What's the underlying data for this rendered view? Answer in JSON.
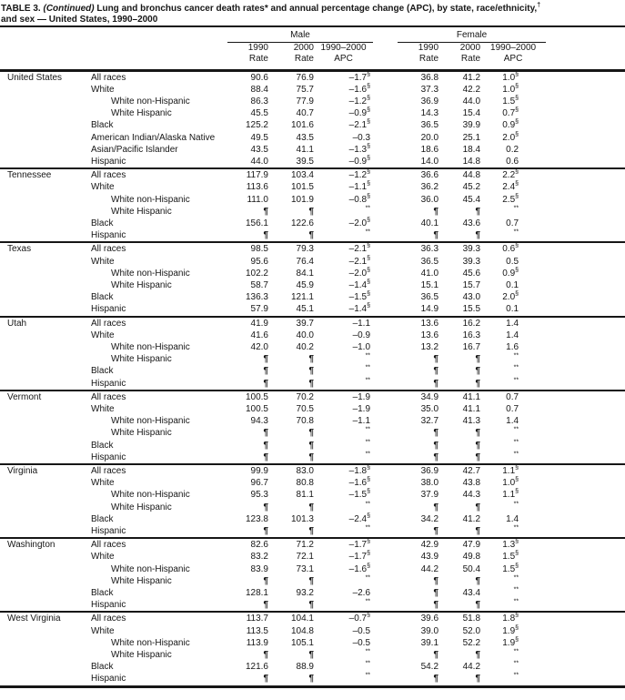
{
  "title": {
    "prefix": "TABLE 3. ",
    "continued": "(Continued)",
    "rest": " Lung and bronchus cancer death rates* and annual percentage change (APC), by state, race/ethnicity,",
    "dagger": "†",
    "line2": "and sex — United States, 1990–2000"
  },
  "header": {
    "male": "Male",
    "female": "Female",
    "columns": [
      {
        "year": "1990",
        "label": "Rate"
      },
      {
        "year": "2000",
        "label": "Rate"
      },
      {
        "year": "1990–2000",
        "label": "APC"
      }
    ]
  },
  "groups": [
    {
      "state": "United States",
      "rows": [
        {
          "label": "All races",
          "indent": false,
          "cells": [
            "90.6",
            "76.9",
            "–1.7§",
            "36.8",
            "41.2",
            "1.0§"
          ]
        },
        {
          "label": "White",
          "indent": false,
          "cells": [
            "88.4",
            "75.7",
            "–1.6§",
            "37.3",
            "42.2",
            "1.0§"
          ]
        },
        {
          "label": "White non-Hispanic",
          "indent": true,
          "cells": [
            "86.3",
            "77.9",
            "–1.2§",
            "36.9",
            "44.0",
            "1.5§"
          ]
        },
        {
          "label": "White Hispanic",
          "indent": true,
          "cells": [
            "45.5",
            "40.7",
            "–0.9§",
            "14.3",
            "15.4",
            "0.7§"
          ]
        },
        {
          "label": "Black",
          "indent": false,
          "cells": [
            "125.2",
            "101.6",
            "–2.1§",
            "36.5",
            "39.9",
            "0.9§"
          ]
        },
        {
          "label": "American Indian/Alaska Native",
          "indent": false,
          "cells": [
            "49.5",
            "43.5",
            "–0.3",
            "20.0",
            "25.1",
            "2.0§"
          ]
        },
        {
          "label": "Asian/Pacific Islander",
          "indent": false,
          "cells": [
            "43.5",
            "41.1",
            "–1.3§",
            "18.6",
            "18.4",
            "0.2"
          ]
        },
        {
          "label": "Hispanic",
          "indent": false,
          "cells": [
            "44.0",
            "39.5",
            "–0.9§",
            "14.0",
            "14.8",
            "0.6"
          ]
        }
      ]
    },
    {
      "state": "Tennessee",
      "rows": [
        {
          "label": "All races",
          "indent": false,
          "cells": [
            "117.9",
            "103.4",
            "–1.2§",
            "36.6",
            "44.8",
            "2.2§"
          ]
        },
        {
          "label": "White",
          "indent": false,
          "cells": [
            "113.6",
            "101.5",
            "–1.1§",
            "36.2",
            "45.2",
            "2.4§"
          ]
        },
        {
          "label": "White non-Hispanic",
          "indent": true,
          "cells": [
            "111.0",
            "101.9",
            "–0.8§",
            "36.0",
            "45.4",
            "2.5§"
          ]
        },
        {
          "label": "White Hispanic",
          "indent": true,
          "cells": [
            "¶",
            "¶",
            "**",
            "¶",
            "¶",
            "**"
          ]
        },
        {
          "label": "Black",
          "indent": false,
          "cells": [
            "156.1",
            "122.6",
            "–2.0§",
            "40.1",
            "43.6",
            "0.7"
          ]
        },
        {
          "label": "Hispanic",
          "indent": false,
          "cells": [
            "¶",
            "¶",
            "**",
            "¶",
            "¶",
            "**"
          ]
        }
      ]
    },
    {
      "state": "Texas",
      "rows": [
        {
          "label": "All races",
          "indent": false,
          "cells": [
            "98.5",
            "79.3",
            "–2.1§",
            "36.3",
            "39.3",
            "0.6§"
          ]
        },
        {
          "label": "White",
          "indent": false,
          "cells": [
            "95.6",
            "76.4",
            "–2.1§",
            "36.5",
            "39.3",
            "0.5"
          ]
        },
        {
          "label": "White non-Hispanic",
          "indent": true,
          "cells": [
            "102.2",
            "84.1",
            "–2.0§",
            "41.0",
            "45.6",
            "0.9§"
          ]
        },
        {
          "label": "White Hispanic",
          "indent": true,
          "cells": [
            "58.7",
            "45.9",
            "–1.4§",
            "15.1",
            "15.7",
            "0.1"
          ]
        },
        {
          "label": "Black",
          "indent": false,
          "cells": [
            "136.3",
            "121.1",
            "–1.5§",
            "36.5",
            "43.0",
            "2.0§"
          ]
        },
        {
          "label": "Hispanic",
          "indent": false,
          "cells": [
            "57.9",
            "45.1",
            "–1.4§",
            "14.9",
            "15.5",
            "0.1"
          ]
        }
      ]
    },
    {
      "state": "Utah",
      "rows": [
        {
          "label": "All races",
          "indent": false,
          "cells": [
            "41.9",
            "39.7",
            "–1.1",
            "13.6",
            "16.2",
            "1.4"
          ]
        },
        {
          "label": "White",
          "indent": false,
          "cells": [
            "41.6",
            "40.0",
            "–0.9",
            "13.6",
            "16.3",
            "1.4"
          ]
        },
        {
          "label": "White non-Hispanic",
          "indent": true,
          "cells": [
            "42.0",
            "40.2",
            "–1.0",
            "13.2",
            "16.7",
            "1.6"
          ]
        },
        {
          "label": "White Hispanic",
          "indent": true,
          "cells": [
            "¶",
            "¶",
            "**",
            "¶",
            "¶",
            "**"
          ]
        },
        {
          "label": "Black",
          "indent": false,
          "cells": [
            "¶",
            "¶",
            "**",
            "¶",
            "¶",
            "**"
          ]
        },
        {
          "label": "Hispanic",
          "indent": false,
          "cells": [
            "¶",
            "¶",
            "**",
            "¶",
            "¶",
            "**"
          ]
        }
      ]
    },
    {
      "state": "Vermont",
      "rows": [
        {
          "label": "All races",
          "indent": false,
          "cells": [
            "100.5",
            "70.2",
            "–1.9",
            "34.9",
            "41.1",
            "0.7"
          ]
        },
        {
          "label": "White",
          "indent": false,
          "cells": [
            "100.5",
            "70.5",
            "–1.9",
            "35.0",
            "41.1",
            "0.7"
          ]
        },
        {
          "label": "White non-Hispanic",
          "indent": true,
          "cells": [
            "94.3",
            "70.8",
            "–1.1",
            "32.7",
            "41.3",
            "1.4"
          ]
        },
        {
          "label": "White Hispanic",
          "indent": true,
          "cells": [
            "¶",
            "¶",
            "**",
            "¶",
            "¶",
            "**"
          ]
        },
        {
          "label": "Black",
          "indent": false,
          "cells": [
            "¶",
            "¶",
            "**",
            "¶",
            "¶",
            "**"
          ]
        },
        {
          "label": "Hispanic",
          "indent": false,
          "cells": [
            "¶",
            "¶",
            "**",
            "¶",
            "¶",
            "**"
          ]
        }
      ]
    },
    {
      "state": "Virginia",
      "rows": [
        {
          "label": "All races",
          "indent": false,
          "cells": [
            "99.9",
            "83.0",
            "–1.8§",
            "36.9",
            "42.7",
            "1.1§"
          ]
        },
        {
          "label": "White",
          "indent": false,
          "cells": [
            "96.7",
            "80.8",
            "–1.6§",
            "38.0",
            "43.8",
            "1.0§"
          ]
        },
        {
          "label": "White non-Hispanic",
          "indent": true,
          "cells": [
            "95.3",
            "81.1",
            "–1.5§",
            "37.9",
            "44.3",
            "1.1§"
          ]
        },
        {
          "label": "White Hispanic",
          "indent": true,
          "cells": [
            "¶",
            "¶",
            "**",
            "¶",
            "¶",
            "**"
          ]
        },
        {
          "label": "Black",
          "indent": false,
          "cells": [
            "123.8",
            "101.3",
            "–2.4§",
            "34.2",
            "41.2",
            "1.4"
          ]
        },
        {
          "label": "Hispanic",
          "indent": false,
          "cells": [
            "¶",
            "¶",
            "**",
            "¶",
            "¶",
            "**"
          ]
        }
      ]
    },
    {
      "state": "Washington",
      "rows": [
        {
          "label": "All races",
          "indent": false,
          "cells": [
            "82.6",
            "71.2",
            "–1.7§",
            "42.9",
            "47.9",
            "1.3§"
          ]
        },
        {
          "label": "White",
          "indent": false,
          "cells": [
            "83.2",
            "72.1",
            "–1.7§",
            "43.9",
            "49.8",
            "1.5§"
          ]
        },
        {
          "label": "White non-Hispanic",
          "indent": true,
          "cells": [
            "83.9",
            "73.1",
            "–1.6§",
            "44.2",
            "50.4",
            "1.5§"
          ]
        },
        {
          "label": "White Hispanic",
          "indent": true,
          "cells": [
            "¶",
            "¶",
            "**",
            "¶",
            "¶",
            "**"
          ]
        },
        {
          "label": "Black",
          "indent": false,
          "cells": [
            "128.1",
            "93.2",
            "–2.6",
            "¶",
            "43.4",
            "**"
          ]
        },
        {
          "label": "Hispanic",
          "indent": false,
          "cells": [
            "¶",
            "¶",
            "**",
            "¶",
            "¶",
            "**"
          ]
        }
      ]
    },
    {
      "state": "West Virginia",
      "rows": [
        {
          "label": "All races",
          "indent": false,
          "cells": [
            "113.7",
            "104.1",
            "–0.7§",
            "39.6",
            "51.8",
            "1.8§"
          ]
        },
        {
          "label": "White",
          "indent": false,
          "cells": [
            "113.5",
            "104.8",
            "–0.5",
            "39.0",
            "52.0",
            "1.9§"
          ]
        },
        {
          "label": "White non-Hispanic",
          "indent": true,
          "cells": [
            "113.9",
            "105.1",
            "–0.5",
            "39.1",
            "52.2",
            "1.9§"
          ]
        },
        {
          "label": "White Hispanic",
          "indent": true,
          "cells": [
            "¶",
            "¶",
            "**",
            "¶",
            "¶",
            "**"
          ]
        },
        {
          "label": "Black",
          "indent": false,
          "cells": [
            "121.6",
            "88.9",
            "**",
            "54.2",
            "44.2",
            "**"
          ]
        },
        {
          "label": "Hispanic",
          "indent": false,
          "cells": [
            "¶",
            "¶",
            "**",
            "¶",
            "¶",
            "**"
          ]
        }
      ]
    }
  ]
}
